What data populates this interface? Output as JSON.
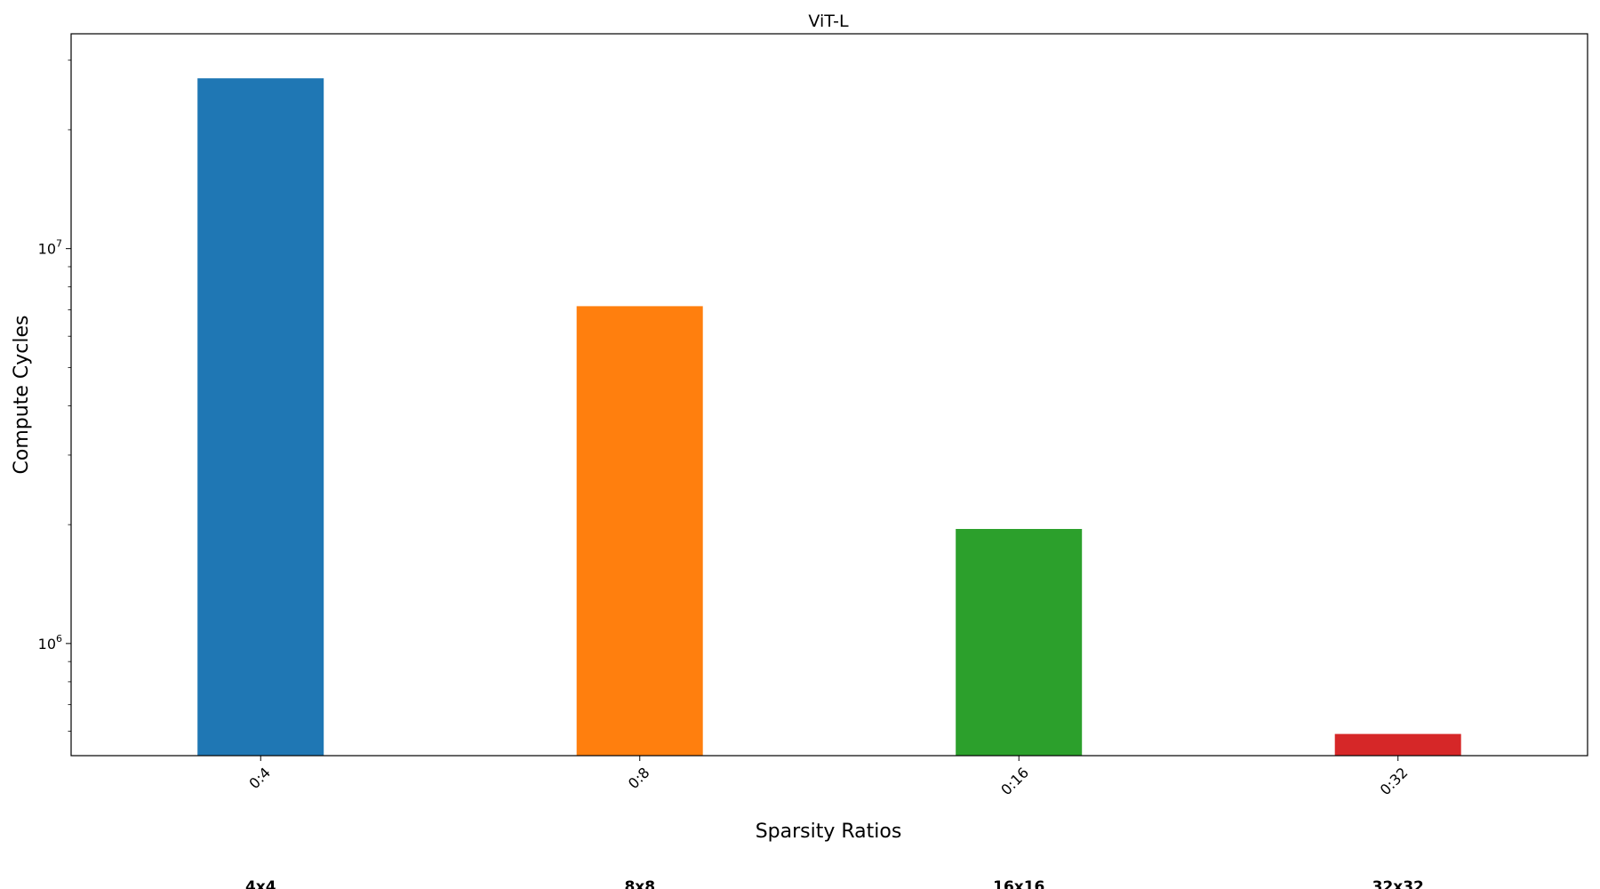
{
  "chart_data": {
    "type": "bar",
    "title": "ViT-L",
    "xlabel": "Sparsity Ratios",
    "ylabel": "Compute Cycles",
    "yscale": "log",
    "ylim": [
      520000,
      35000000
    ],
    "grid": false,
    "legend": "none",
    "categories": [
      "0:4",
      "0:8",
      "0:16",
      "0:32"
    ],
    "group_labels": [
      "4x4",
      "8x8",
      "16x16",
      "32x32"
    ],
    "values": [
      27000000,
      7150000,
      1950000,
      590000
    ],
    "colors": [
      "#1f77b4",
      "#ff7f0e",
      "#2ca02c",
      "#d62728"
    ],
    "y_major_ticks": [
      {
        "value": 1000000,
        "mantissa": "10",
        "exponent": "6"
      },
      {
        "value": 10000000,
        "mantissa": "10",
        "exponent": "7"
      }
    ]
  }
}
